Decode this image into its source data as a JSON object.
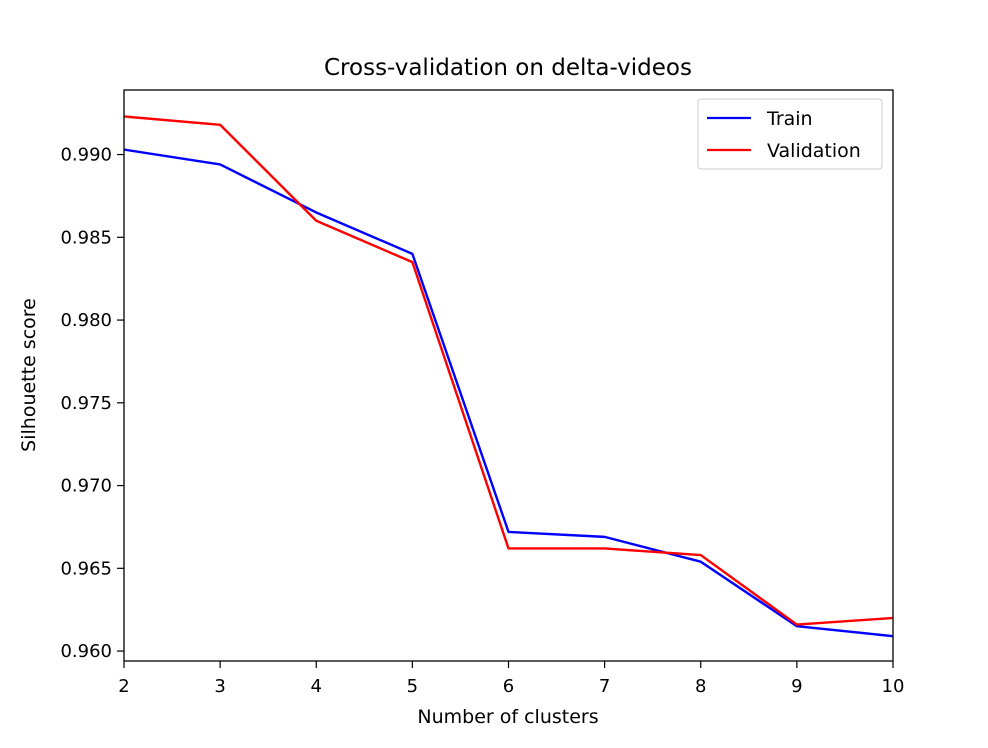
{
  "chart_data": {
    "type": "line",
    "title": "Cross-validation on delta-videos",
    "xlabel": "Number of clusters",
    "ylabel": "Silhouette score",
    "x": [
      2,
      3,
      4,
      5,
      6,
      7,
      8,
      9,
      10
    ],
    "xlim": [
      2,
      10
    ],
    "ylim": [
      0.9594,
      0.9939
    ],
    "xticks": [
      2,
      3,
      4,
      5,
      6,
      7,
      8,
      9,
      10
    ],
    "yticks": [
      0.96,
      0.965,
      0.97,
      0.975,
      0.98,
      0.985,
      0.99
    ],
    "ytick_labels": [
      "0.960",
      "0.965",
      "0.970",
      "0.975",
      "0.980",
      "0.985",
      "0.990"
    ],
    "grid": false,
    "legend_position": "upper-right",
    "series": [
      {
        "name": "Train",
        "color": "#0000ff",
        "values": [
          0.9903,
          0.9894,
          0.9865,
          0.984,
          0.9672,
          0.9669,
          0.9654,
          0.9615,
          0.9609
        ]
      },
      {
        "name": "Validation",
        "color": "#ff0000",
        "values": [
          0.9923,
          0.9918,
          0.986,
          0.9835,
          0.9662,
          0.9662,
          0.9658,
          0.9616,
          0.962
        ]
      }
    ]
  }
}
